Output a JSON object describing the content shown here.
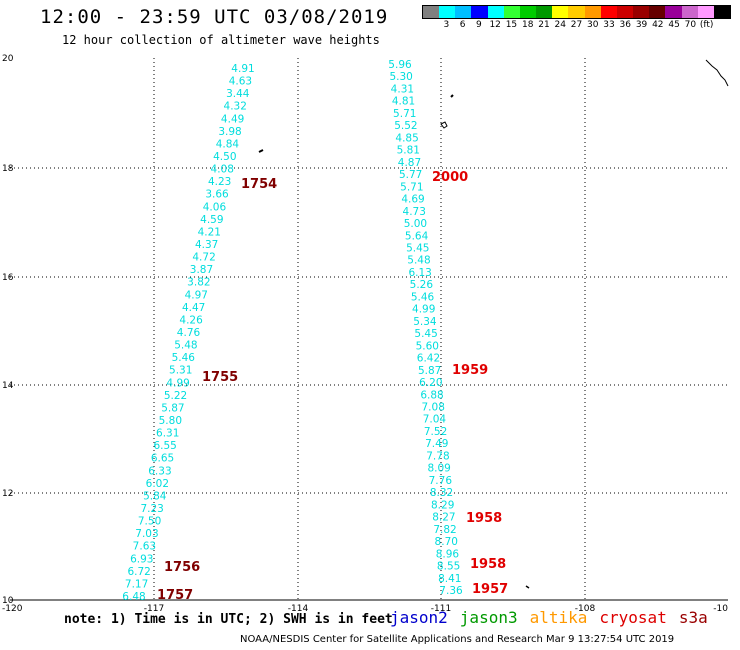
{
  "header": {
    "title": "12:00 - 23:59 UTC 03/08/2019",
    "subtitle": "12 hour collection of altimeter wave heights"
  },
  "legend": {
    "colors": [
      "#808080",
      "#00ffff",
      "#00bfff",
      "#0000ff",
      "#00ffff",
      "#33ff33",
      "#00cc00",
      "#009900",
      "#ffff00",
      "#ffcc00",
      "#ff9900",
      "#ff0000",
      "#cc0000",
      "#990000",
      "#660000",
      "#990099",
      "#cc66cc",
      "#ff99ff",
      "#000000"
    ],
    "labels": [
      "3",
      "6",
      "9",
      "12",
      "15",
      "18",
      "21",
      "24",
      "27",
      "30",
      "33",
      "36",
      "39",
      "42",
      "45",
      "70",
      "(ft)"
    ]
  },
  "chart_data": {
    "type": "map",
    "x_ticks": [
      "-120",
      "-117",
      "-114",
      "-111",
      "-108",
      "-10"
    ],
    "y_ticks": [
      "20",
      "18",
      "16",
      "14",
      "12",
      "10"
    ],
    "grid": "dotted",
    "tracks": [
      {
        "satellite": "jason3",
        "values": [
          "4.91",
          "4.63",
          "3.44",
          "4.32",
          "4.49",
          "3.98",
          "4.84",
          "4.50",
          "4.08",
          "4.23",
          "3.66",
          "4.06",
          "4.59",
          "4.21",
          "4.37",
          "4.72",
          "3.87",
          "3.82",
          "4.97",
          "4.47",
          "4.26",
          "4.76",
          "5.48",
          "5.46",
          "5.31",
          "4.99",
          "5.22",
          "5.87",
          "5.80",
          "6.31",
          "6.55",
          "6.65",
          "6.33",
          "6.02",
          "5.84",
          "7.23",
          "7.50",
          "7.03",
          "7.63",
          "6.93",
          "6.72",
          "7.17",
          "6.48"
        ]
      },
      {
        "satellite": "jason3",
        "values": [
          "5.96",
          "5.30",
          "4.31",
          "4.81",
          "5.71",
          "5.52",
          "4.85",
          "5.81",
          "4.87",
          "5.77",
          "5.71",
          "4.69",
          "4.73",
          "5.00",
          "5.64",
          "5.45",
          "5.48",
          "6.13",
          "5.26",
          "5.46",
          "4.99",
          "5.34",
          "5.45",
          "5.60",
          "6.42",
          "5.87",
          "6.20",
          "6.88",
          "7.08",
          "7.04",
          "7.52",
          "7.49",
          "7.78",
          "8.09",
          "7.76",
          "8.32",
          "8.29",
          "8.27",
          "7.82",
          "8.70",
          "8.96",
          "8.55",
          "8.41",
          "7.36"
        ]
      }
    ],
    "time_labels": [
      {
        "text": "1754",
        "color": "#800000"
      },
      {
        "text": "1755",
        "color": "#800000"
      },
      {
        "text": "1756",
        "color": "#800000"
      },
      {
        "text": "1757",
        "color": "#800000"
      },
      {
        "text": "2000",
        "color": "#e00000"
      },
      {
        "text": "1959",
        "color": "#e00000"
      },
      {
        "text": "1958",
        "color": "#e00000"
      },
      {
        "text": "1958",
        "color": "#e00000"
      },
      {
        "text": "1957",
        "color": "#e00000"
      }
    ]
  },
  "footer": {
    "note": "note: 1) Time is in UTC; 2) SWH is in feet",
    "satellites": [
      {
        "name": "jason2",
        "color": "#0000cc"
      },
      {
        "name": "jason3",
        "color": "#009900"
      },
      {
        "name": "altika",
        "color": "#ff9900"
      },
      {
        "name": "cryosat",
        "color": "#dd0000"
      },
      {
        "name": "s3a",
        "color": "#990000"
      }
    ],
    "credit": "NOAA/NESDIS Center for Satellite Applications and Research    Mar  9 13:27:54 UTC 2019"
  }
}
